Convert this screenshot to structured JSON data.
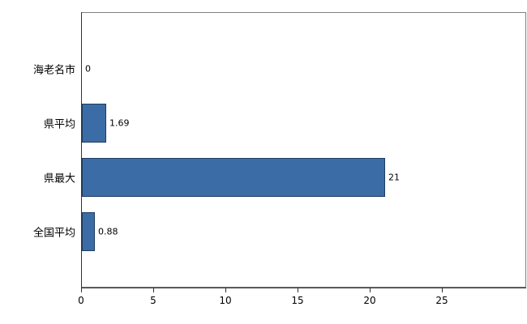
{
  "chart_data": {
    "type": "bar",
    "orientation": "horizontal",
    "title": "",
    "xlabel": "",
    "ylabel": "",
    "categories": [
      "海老名市",
      "県平均",
      "県最大",
      "全国平均"
    ],
    "values": [
      0,
      1.69,
      21,
      0.88
    ],
    "value_labels": [
      "0",
      "1.69",
      "21",
      "0.88"
    ],
    "xlim": [
      0,
      25
    ],
    "x_ticks": [
      0,
      5,
      10,
      15,
      20,
      25
    ],
    "grid": false,
    "legend": false,
    "bar_color": "#3c6ca5",
    "bar_border_color": "#1f3c61",
    "axis_color": "#333333",
    "plot_border_color": "#7f7f7f",
    "text_color": "#000000",
    "background_color": "#ffffff"
  }
}
